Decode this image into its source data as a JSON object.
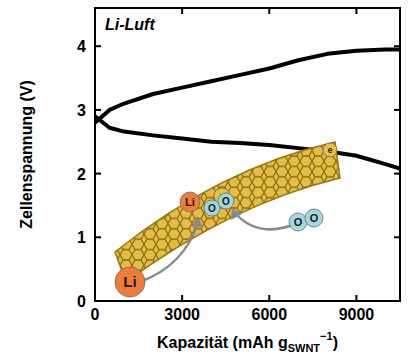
{
  "chart_data": {
    "type": "line",
    "title": "Li-Luft",
    "xlabel": {
      "text": "Kapazität (mAh g",
      "sub": "SWNT",
      "sup": "−1",
      "end": ")"
    },
    "ylabel": "Zellenspannung (V)",
    "x": [
      0,
      500,
      1000,
      2000,
      3000,
      4000,
      5000,
      6000,
      7000,
      8000,
      9000,
      10000,
      10500
    ],
    "series": [
      {
        "color": "#000000",
        "values": [
          2.8,
          3.0,
          3.1,
          3.25,
          3.35,
          3.45,
          3.55,
          3.65,
          3.78,
          3.88,
          3.93,
          3.95,
          3.95
        ]
      },
      {
        "color": "#000000",
        "values": [
          2.9,
          2.72,
          2.66,
          2.6,
          2.55,
          2.5,
          2.48,
          2.45,
          2.4,
          2.35,
          2.28,
          2.15,
          2.08
        ]
      }
    ],
    "xlim": [
      0,
      10500
    ],
    "ylim": [
      0,
      4.6
    ],
    "xticks": [
      0,
      3000,
      6000,
      9000
    ],
    "yticks": [
      0,
      1,
      2,
      3,
      4
    ],
    "grid": false,
    "annotations": [
      "Li",
      "e",
      "O"
    ]
  }
}
